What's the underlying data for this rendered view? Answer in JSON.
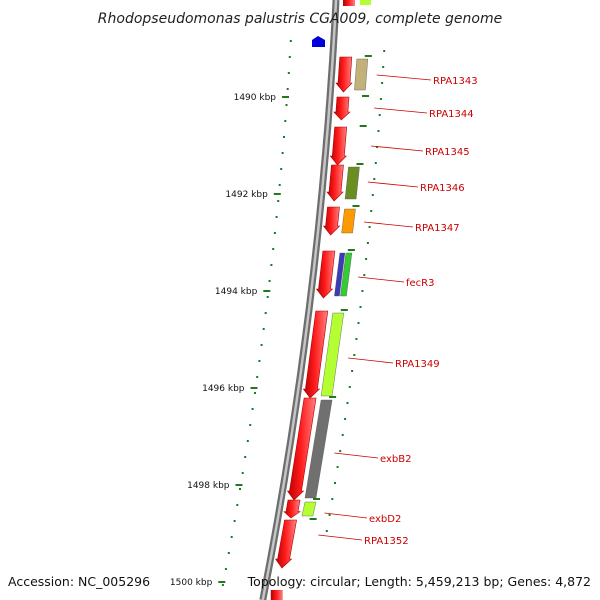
{
  "title": "Rhodopseudomonas palustris CGA009, complete genome",
  "accession_text": "Accession: NC_005296",
  "summary_text": "Topology: circular; Length: 5,459,213 bp; Genes: 4,872",
  "colors": {
    "backbone": "#8c8c8c",
    "gene": "#ff0000",
    "tick": "#1f7a1f",
    "label": "#cc0000",
    "leader": "#cc0000",
    "marker": "#0000dd"
  },
  "scale_ticks": [
    {
      "label": "1490 kbp"
    },
    {
      "label": "1492 kbp"
    },
    {
      "label": "1494 kbp"
    },
    {
      "label": "1496 kbp"
    },
    {
      "label": "1498 kbp"
    },
    {
      "label": "1500 kbp"
    }
  ],
  "genes": [
    {
      "label": "RPA1343",
      "cog_color": "#c2b27a"
    },
    {
      "label": "RPA1344",
      "cog_color": ""
    },
    {
      "label": "RPA1345",
      "cog_color": ""
    },
    {
      "label": "RPA1346",
      "cog_color": "#6b8e23"
    },
    {
      "label": "RPA1347",
      "cog_color": "#ff9900"
    },
    {
      "label": "fecR3",
      "cog_color": "#3b3bb8"
    },
    {
      "label": "RPA1349",
      "cog_color": "#b3ff33"
    },
    {
      "label": "exbB2",
      "cog_color": "#707070"
    },
    {
      "label": "exbD2",
      "cog_color": "#b3ff33"
    },
    {
      "label": "RPA1352",
      "cog_color": ""
    }
  ]
}
